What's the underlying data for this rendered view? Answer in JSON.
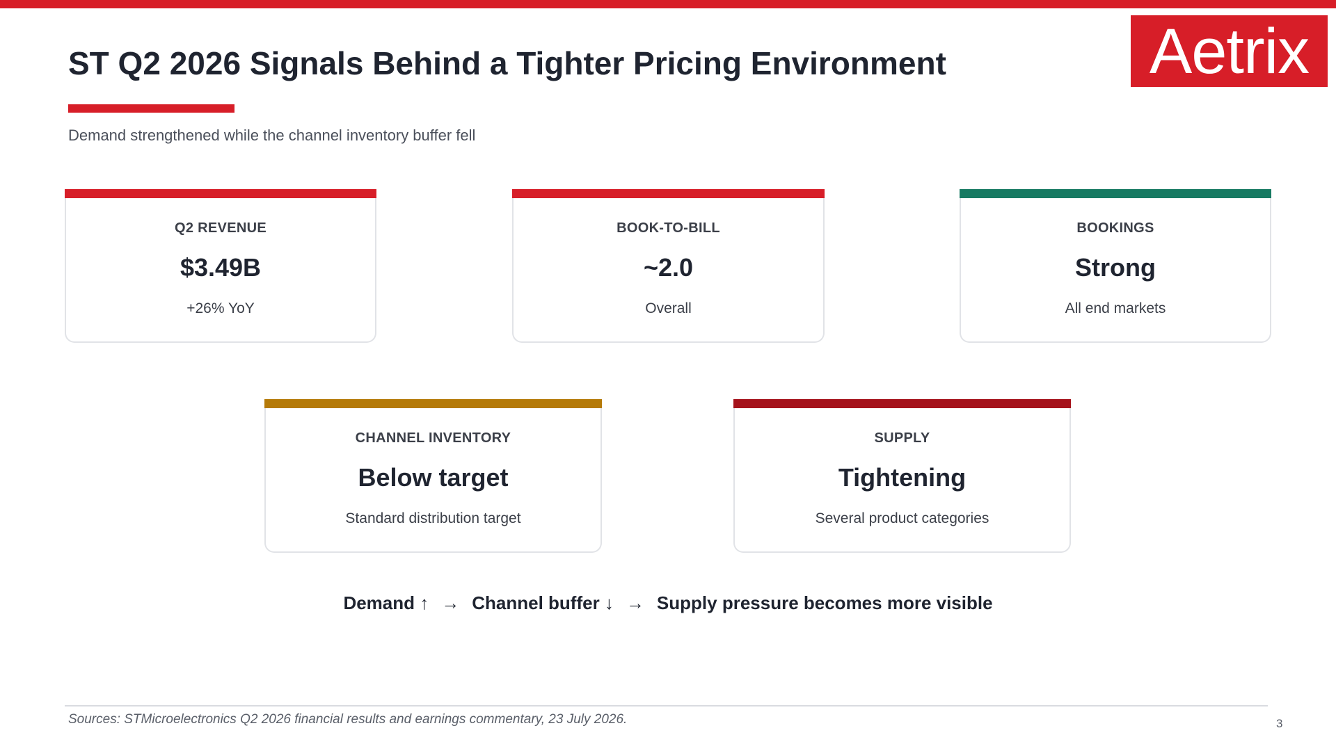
{
  "colors": {
    "brand_red": "#d71e28",
    "green": "#177a62",
    "amber": "#b57a08",
    "dark_red": "#a5121b"
  },
  "logo": {
    "text": "Aetrix"
  },
  "header": {
    "title": "ST Q2 2026 Signals Behind a Tighter Pricing Environment",
    "subtitle": "Demand strengthened while the channel inventory buffer fell"
  },
  "cards": [
    {
      "label": "Q2 REVENUE",
      "value": "$3.49B",
      "note": "+26% YoY",
      "accent": "#d71e28"
    },
    {
      "label": "BOOK-TO-BILL",
      "value": "~2.0",
      "note": "Overall",
      "accent": "#d71e28"
    },
    {
      "label": "BOOKINGS",
      "value": "Strong",
      "note": "All end markets",
      "accent": "#177a62"
    },
    {
      "label": "CHANNEL INVENTORY",
      "value": "Below target",
      "note": "Standard distribution target",
      "accent": "#b57a08"
    },
    {
      "label": "SUPPLY",
      "value": "Tightening",
      "note": "Several product categories",
      "accent": "#a5121b"
    }
  ],
  "flow": {
    "step1": "Demand ↑",
    "arrow": "→",
    "step2": "Channel buffer ↓",
    "step3": "Supply pressure becomes more visible"
  },
  "footer": {
    "sources": "Sources: STMicroelectronics Q2 2026 financial results and earnings commentary, 23 July 2026.",
    "page_number": "3"
  }
}
